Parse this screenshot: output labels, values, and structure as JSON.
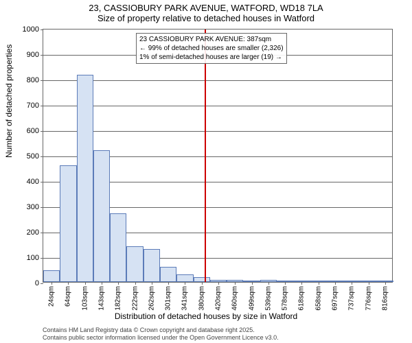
{
  "titles": {
    "line1": "23, CASSIOBURY PARK AVENUE, WATFORD, WD18 7LA",
    "line2": "Size of property relative to detached houses in Watford"
  },
  "chart": {
    "type": "histogram",
    "ylabel": "Number of detached properties",
    "xlabel": "Distribution of detached houses by size in Watford",
    "ylim": [
      0,
      1000
    ],
    "ytick_step": 100,
    "xticks": [
      "24sqm",
      "64sqm",
      "103sqm",
      "143sqm",
      "182sqm",
      "222sqm",
      "262sqm",
      "301sqm",
      "341sqm",
      "380sqm",
      "420sqm",
      "460sqm",
      "499sqm",
      "539sqm",
      "578sqm",
      "618sqm",
      "658sqm",
      "697sqm",
      "737sqm",
      "776sqm",
      "816sqm"
    ],
    "bars": [
      45,
      460,
      815,
      520,
      270,
      140,
      130,
      60,
      30,
      20,
      8,
      8,
      5,
      8,
      2,
      2,
      2,
      2,
      2,
      2,
      2
    ],
    "bar_fill": "#d6e2f3",
    "bar_stroke": "#5b7bb8",
    "grid_color": "#666666",
    "background_color": "#ffffff",
    "border_color": "#666666",
    "refline": {
      "value_sqm": 387,
      "color": "#cc0000",
      "width": 2
    },
    "annotation": {
      "line1": "23 CASSIOBURY PARK AVENUE: 387sqm",
      "line2": "← 99% of detached houses are smaller (2,326)",
      "line3": "1% of semi-detached houses are larger (19) →"
    }
  },
  "footer": {
    "line1": "Contains HM Land Registry data © Crown copyright and database right 2025.",
    "line2": "Contains public sector information licensed under the Open Government Licence v3.0."
  }
}
